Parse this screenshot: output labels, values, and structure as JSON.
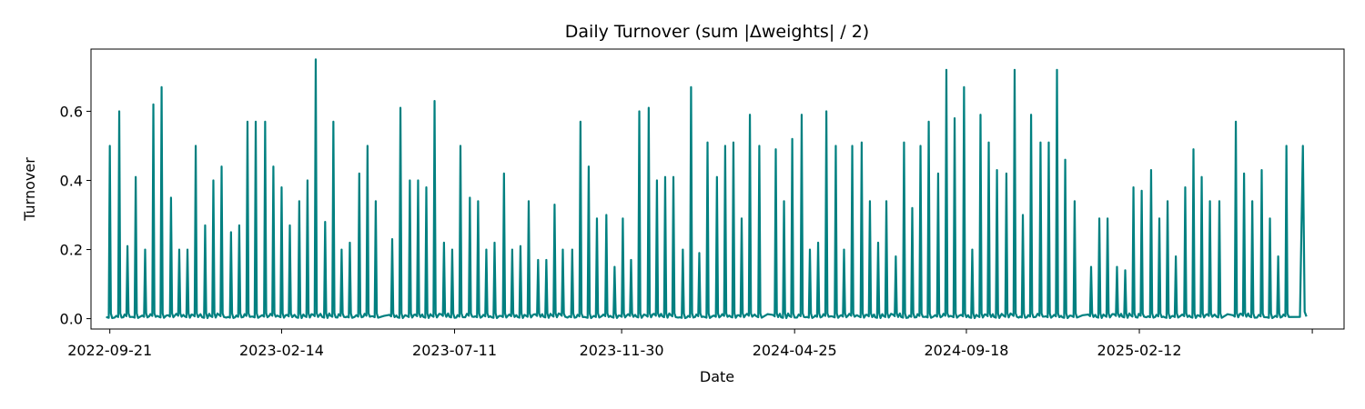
{
  "chart_data": {
    "type": "line",
    "title": "Daily Turnover (sum |Δweights| / 2)",
    "xlabel": "Date",
    "ylabel": "Turnover",
    "x_axis_type": "date",
    "xlim": [
      "2022-09-05",
      "2025-08-05"
    ],
    "ylim": [
      -0.03,
      0.78
    ],
    "x_ticks": [
      "2022-09-21",
      "2023-02-14",
      "2023-07-11",
      "2023-11-30",
      "2024-04-25",
      "2024-09-18",
      "2025-02-12"
    ],
    "x_tick_extra_unlabeled": [
      "2025-07-09"
    ],
    "y_ticks": [
      0.0,
      0.2,
      0.4,
      0.6
    ],
    "y_tick_labels": [
      "0.0",
      "0.2",
      "0.4",
      "0.6"
    ],
    "grid": false,
    "legend": "none",
    "color": "#008080",
    "baseline": 0.007,
    "series": [
      {
        "x": [
          "2022-09-21",
          "2022-09-29",
          "2022-10-06",
          "2022-10-13",
          "2022-10-21",
          "2022-10-28",
          "2022-11-04",
          "2022-11-12",
          "2022-11-19",
          "2022-11-26",
          "2022-12-03",
          "2022-12-11",
          "2022-12-18",
          "2022-12-25",
          "2023-01-02",
          "2023-01-09",
          "2023-01-16",
          "2023-01-23",
          "2023-01-31",
          "2023-02-07",
          "2023-02-14",
          "2023-02-21",
          "2023-03-01",
          "2023-03-08",
          "2023-03-15",
          "2023-03-23",
          "2023-03-30",
          "2023-04-06",
          "2023-04-13",
          "2023-04-21",
          "2023-04-28",
          "2023-05-05",
          "2023-05-19",
          "2023-05-26",
          "2023-06-03",
          "2023-06-10",
          "2023-06-17",
          "2023-06-24",
          "2023-07-02",
          "2023-07-09",
          "2023-07-16",
          "2023-07-24",
          "2023-07-31",
          "2023-08-07",
          "2023-08-14",
          "2023-08-22",
          "2023-08-29",
          "2023-09-05",
          "2023-09-12",
          "2023-09-20",
          "2023-09-27",
          "2023-10-04",
          "2023-10-11",
          "2023-10-19",
          "2023-10-26",
          "2023-11-02",
          "2023-11-09",
          "2023-11-17",
          "2023-11-24",
          "2023-12-01",
          "2023-12-08",
          "2023-12-15",
          "2023-12-23",
          "2023-12-30",
          "2024-01-06",
          "2024-01-13",
          "2024-01-21",
          "2024-01-28",
          "2024-02-04",
          "2024-02-11",
          "2024-02-19",
          "2024-02-26",
          "2024-03-04",
          "2024-03-11",
          "2024-03-18",
          "2024-03-26",
          "2024-04-09",
          "2024-04-16",
          "2024-04-23",
          "2024-05-01",
          "2024-05-08",
          "2024-05-15",
          "2024-05-22",
          "2024-05-30",
          "2024-06-06",
          "2024-06-13",
          "2024-06-21",
          "2024-06-28",
          "2024-07-05",
          "2024-07-12",
          "2024-07-20",
          "2024-07-27",
          "2024-08-03",
          "2024-08-10",
          "2024-08-17",
          "2024-08-25",
          "2024-09-01",
          "2024-09-08",
          "2024-09-16",
          "2024-09-23",
          "2024-09-30",
          "2024-10-07",
          "2024-10-14",
          "2024-10-22",
          "2024-10-29",
          "2024-11-05",
          "2024-11-12",
          "2024-11-20",
          "2024-11-27",
          "2024-12-04",
          "2024-12-11",
          "2024-12-19",
          "2025-01-02",
          "2025-01-09",
          "2025-01-16",
          "2025-01-24",
          "2025-01-31",
          "2025-02-07",
          "2025-02-14",
          "2025-02-22",
          "2025-03-01",
          "2025-03-08",
          "2025-03-15",
          "2025-03-23",
          "2025-03-30",
          "2025-04-06",
          "2025-04-13",
          "2025-04-21",
          "2025-05-05",
          "2025-05-12",
          "2025-05-19",
          "2025-05-27",
          "2025-06-03",
          "2025-06-10",
          "2025-06-17"
        ],
        "y": [
          0.5,
          0.6,
          0.21,
          0.41,
          0.2,
          0.62,
          0.67,
          0.35,
          0.2,
          0.2,
          0.5,
          0.27,
          0.4,
          0.44,
          0.25,
          0.27,
          0.57,
          0.57,
          0.57,
          0.44,
          0.38,
          0.27,
          0.34,
          0.4,
          0.75,
          0.28,
          0.57,
          0.2,
          0.22,
          0.42,
          0.5,
          0.34,
          0.23,
          0.61,
          0.4,
          0.4,
          0.38,
          0.63,
          0.22,
          0.2,
          0.5,
          0.35,
          0.34,
          0.2,
          0.22,
          0.42,
          0.2,
          0.21,
          0.34,
          0.17,
          0.17,
          0.33,
          0.2,
          0.2,
          0.57,
          0.44,
          0.29,
          0.3,
          0.15,
          0.29,
          0.17,
          0.6,
          0.61,
          0.4,
          0.41,
          0.41,
          0.2,
          0.67,
          0.19,
          0.51,
          0.41,
          0.5,
          0.51,
          0.29,
          0.59,
          0.5,
          0.49,
          0.34,
          0.52,
          0.59,
          0.2,
          0.22,
          0.6,
          0.5,
          0.2,
          0.5,
          0.51,
          0.34,
          0.22,
          0.34,
          0.18,
          0.51,
          0.32,
          0.5,
          0.57,
          0.42,
          0.72,
          0.58,
          0.67,
          0.2,
          0.59,
          0.51,
          0.43,
          0.42,
          0.72,
          0.3,
          0.59,
          0.51,
          0.51,
          0.72,
          0.46,
          0.34,
          0.15,
          0.29,
          0.29,
          0.15,
          0.14,
          0.38,
          0.37,
          0.43,
          0.29,
          0.34,
          0.18,
          0.38,
          0.49,
          0.41,
          0.34,
          0.34,
          0.57,
          0.42,
          0.34,
          0.43,
          0.29,
          0.18,
          0.5
        ]
      }
    ],
    "end_date": "2025-07-01",
    "end_value": 0.5
  }
}
